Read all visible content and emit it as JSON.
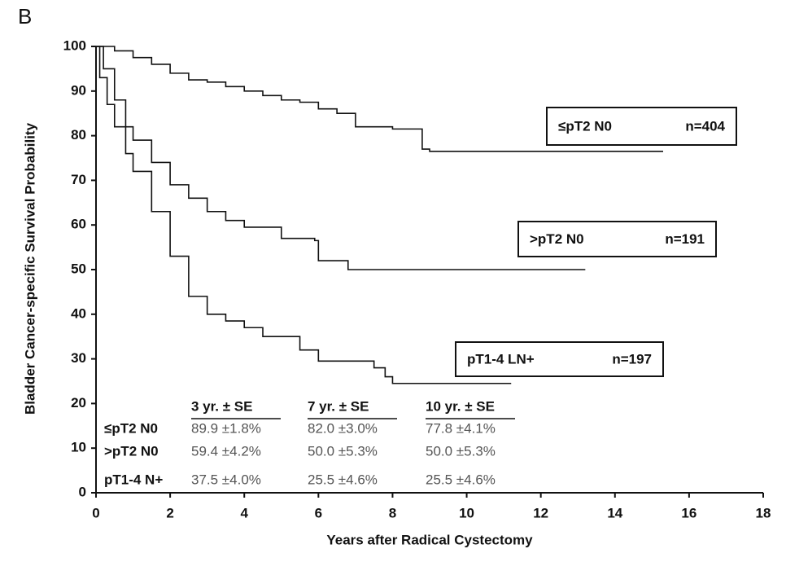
{
  "chart_data": {
    "type": "step",
    "panel_label": "B",
    "x_label": "Years after Radical Cystectomy",
    "y_label": "Bladder Cancer-specific Survival Probability",
    "xlim": [
      0,
      18
    ],
    "xticks": [
      0,
      2,
      4,
      6,
      8,
      10,
      12,
      14,
      16,
      18
    ],
    "ylim": [
      0,
      100
    ],
    "yticks": [
      0,
      10,
      20,
      30,
      40,
      50,
      60,
      70,
      80,
      90,
      100
    ],
    "series": [
      {
        "name": "≤pT2 N0",
        "n": "n=404",
        "color": "#111111",
        "x": [
          0,
          0.5,
          1,
          1.5,
          2,
          2.5,
          3,
          3.5,
          4,
          4.5,
          5,
          5.5,
          6,
          6.5,
          7,
          8,
          8.8,
          9,
          15.3
        ],
        "values": [
          100,
          99,
          97.5,
          96,
          94,
          92.5,
          92,
          91,
          90,
          89,
          88,
          87.5,
          86,
          85,
          82,
          81.5,
          77,
          76.5,
          76.5
        ]
      },
      {
        "name": ">pT2 N0",
        "n": "n=191",
        "color": "#111111",
        "x": [
          0,
          0.2,
          0.5,
          0.8,
          1,
          1.5,
          2,
          2.5,
          3,
          3.5,
          4,
          5,
          5.9,
          6,
          6.8,
          13.2
        ],
        "values": [
          100,
          95,
          88,
          82,
          79,
          74,
          69,
          66,
          63,
          61,
          59.5,
          57,
          56.5,
          52,
          50,
          50
        ]
      },
      {
        "name": "pT1-4 LN+",
        "n": "n=197",
        "color": "#111111",
        "x": [
          0,
          0.1,
          0.3,
          0.5,
          0.8,
          1,
          1.5,
          2,
          2.5,
          3,
          3.5,
          4,
          4.5,
          5.5,
          6,
          7.5,
          7.8,
          8,
          11.2
        ],
        "values": [
          100,
          93,
          87,
          82,
          76,
          72,
          63,
          53,
          44,
          40,
          38.5,
          37,
          35,
          32,
          29.5,
          28,
          26,
          24.5,
          24.5
        ]
      }
    ],
    "table": {
      "columns": [
        "3 yr. ± SE",
        "7 yr. ± SE",
        "10 yr. ± SE"
      ],
      "rows": [
        {
          "label": "≤pT2 N0",
          "cells": [
            "89.9 ±1.8%",
            "82.0 ±3.0%",
            "77.8 ±4.1%"
          ]
        },
        {
          "label": ">pT2 N0",
          "cells": [
            "59.4 ±4.2%",
            "50.0 ±5.3%",
            "50.0 ±5.3%"
          ]
        },
        {
          "label": "pT1-4 N+",
          "cells": [
            "37.5 ±4.0%",
            "25.5 ±4.6%",
            "25.5 ±4.6%"
          ]
        }
      ]
    }
  }
}
